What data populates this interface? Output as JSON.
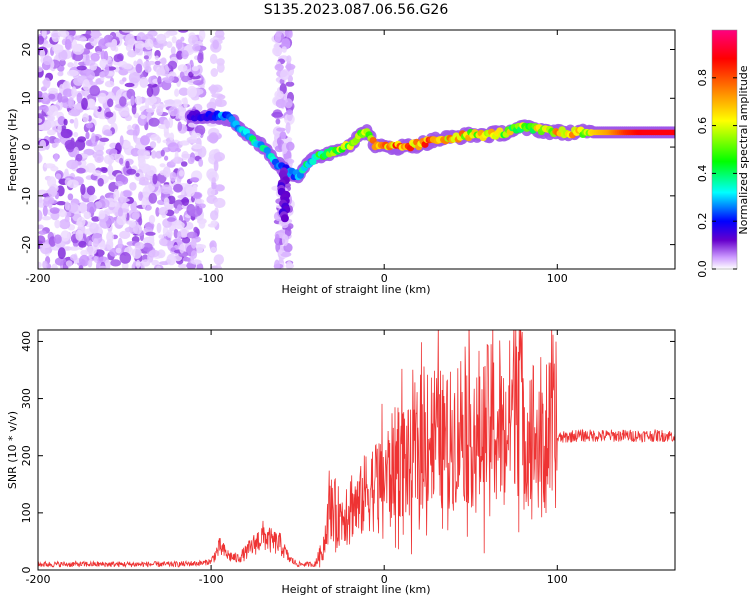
{
  "title": "S135.2023.087.06.56.G26",
  "chart_data": [
    {
      "type": "heatmap",
      "xlabel": "Height of straight line (km)",
      "ylabel": "Frequency (Hz)",
      "xlim": [
        -200,
        168
      ],
      "ylim": [
        -25,
        24
      ],
      "xticks": [
        -200,
        -100,
        0,
        100
      ],
      "yticks": [
        -20,
        -10,
        0,
        10,
        20
      ],
      "colorbar": {
        "label": "Normalized spectral amplitude",
        "range": [
          0,
          1
        ],
        "ticks": [
          "0.0",
          "0.2",
          "0.4",
          "0.6",
          "0.8"
        ],
        "tick_values": [
          0.0,
          0.2,
          0.4,
          0.6,
          0.8
        ],
        "colormap": [
          "#ffffff",
          "#cc99ff",
          "#6600cc",
          "#0000ff",
          "#00ffff",
          "#00ff00",
          "#ffff00",
          "#ff8000",
          "#ff0000",
          "#ff0080"
        ]
      },
      "ridge": {
        "x": [
          -112,
          -100,
          -90,
          -80,
          -70,
          -60,
          -55,
          -50,
          -45,
          -40,
          -30,
          -20,
          -15,
          -10,
          -5,
          0,
          10,
          20,
          30,
          40,
          50,
          60,
          70,
          80,
          90,
          100,
          110,
          120,
          130,
          140,
          150,
          168
        ],
        "y": [
          6.5,
          6.5,
          6,
          3,
          0,
          -4,
          -5,
          -6,
          -4,
          -2,
          -1,
          0.5,
          2,
          3.5,
          0,
          0,
          0,
          0.5,
          1.5,
          2,
          2.5,
          2.5,
          3,
          4,
          3.5,
          3,
          3,
          3,
          3,
          3,
          3,
          3
        ]
      },
      "ridge_amplitude": [
        0.3,
        0.35,
        0.45,
        0.5,
        0.5,
        0.45,
        0.4,
        0.45,
        0.5,
        0.55,
        0.65,
        0.7,
        0.75,
        0.7,
        0.8,
        0.85,
        0.85,
        0.85,
        0.85,
        0.8,
        0.75,
        0.75,
        0.7,
        0.65,
        0.7,
        0.8,
        0.75,
        0.7,
        0.75,
        0.85,
        0.9,
        0.9
      ]
    },
    {
      "type": "line",
      "xlabel": "Height of straight line (km)",
      "ylabel": "SNR (10 * v/v)",
      "xlim": [
        -200,
        168
      ],
      "ylim": [
        0,
        420
      ],
      "xticks": [
        -200,
        -100,
        0,
        100
      ],
      "yticks": [
        0,
        100,
        200,
        300,
        400
      ],
      "color": "#ee3333",
      "series": [
        {
          "x": [
            -200,
            -180,
            -160,
            -140,
            -120,
            -105,
            -100,
            -95,
            -90,
            -85,
            -80,
            -75,
            -70,
            -65,
            -60,
            -55,
            -50,
            -45,
            -40,
            -35,
            -32,
            -30,
            -25,
            -20,
            -15,
            -10,
            -5,
            0,
            5,
            10,
            15,
            20,
            25,
            30,
            35,
            40,
            45,
            50,
            55,
            60,
            65,
            70,
            75,
            78,
            80,
            85,
            90,
            95,
            100,
            110,
            120,
            130,
            140,
            150,
            160,
            168
          ],
          "y": [
            10,
            10,
            10,
            10,
            10,
            12,
            15,
            40,
            25,
            20,
            30,
            45,
            60,
            50,
            45,
            20,
            10,
            10,
            10,
            40,
            100,
            110,
            90,
            120,
            110,
            140,
            150,
            160,
            180,
            200,
            180,
            210,
            230,
            240,
            220,
            230,
            260,
            240,
            220,
            260,
            250,
            230,
            300,
            420,
            220,
            260,
            200,
            240,
            230,
            235,
            235,
            235,
            235,
            235,
            235,
            235
          ]
        }
      ]
    }
  ]
}
